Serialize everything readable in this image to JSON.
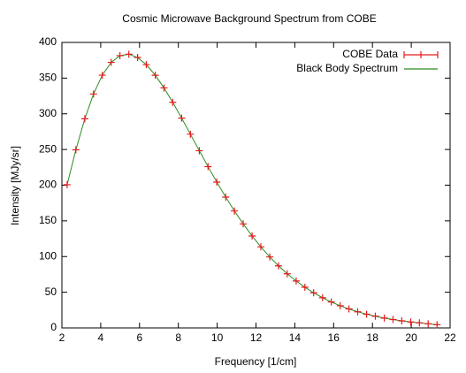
{
  "chart_data": {
    "type": "line",
    "title": "Cosmic Microwave Background Spectrum from COBE",
    "x_label": "Frequency [1/cm]",
    "y_label": "Intensity [MJy/sr]",
    "x": [
      2.27,
      2.72,
      3.18,
      3.63,
      4.08,
      4.54,
      4.99,
      5.45,
      5.9,
      6.35,
      6.81,
      7.26,
      7.71,
      8.17,
      8.62,
      9.08,
      9.53,
      9.98,
      10.44,
      10.89,
      11.34,
      11.8,
      12.25,
      12.71,
      13.16,
      13.61,
      14.07,
      14.52,
      14.97,
      15.43,
      15.88,
      16.34,
      16.79,
      17.24,
      17.7,
      18.15,
      18.61,
      19.06,
      19.51,
      19.97,
      20.42,
      20.87,
      21.33
    ],
    "series": [
      {
        "name": "COBE Data",
        "color": "#e41a1c",
        "style": "points",
        "values": [
          200.723,
          249.508,
          293.024,
          327.77,
          354.081,
          372.079,
          381.493,
          383.478,
          378.901,
          368.833,
          354.063,
          336.278,
          316.076,
          293.924,
          271.432,
          248.239,
          225.94,
          204.327,
          183.262,
          163.83,
          145.75,
          128.835,
          113.568,
          99.451,
          87.036,
          75.876,
          65.766,
          57.008,
          49.223,
          42.267,
          36.352,
          31.062,
          26.58,
          22.644,
          19.255,
          16.391,
          13.811,
          11.716,
          9.921,
          8.364,
          7.087,
          5.801,
          4.523
        ]
      },
      {
        "name": "Black Body Spectrum",
        "color": "#2e8b22",
        "style": "line",
        "values": [
          200.723,
          249.508,
          293.024,
          327.77,
          354.081,
          372.079,
          381.493,
          383.478,
          378.901,
          368.833,
          354.063,
          336.278,
          316.076,
          293.924,
          271.432,
          248.239,
          225.94,
          204.327,
          183.262,
          163.83,
          145.75,
          128.835,
          113.568,
          99.451,
          87.036,
          75.876,
          65.766,
          57.008,
          49.223,
          42.267,
          36.352,
          31.062,
          26.58,
          22.644,
          19.255,
          16.391,
          13.811,
          11.716,
          9.921,
          8.364,
          7.087,
          5.801,
          4.523
        ]
      }
    ],
    "xlim": [
      2,
      22
    ],
    "xticks": [
      2,
      4,
      6,
      8,
      10,
      12,
      14,
      16,
      18,
      20,
      22
    ],
    "ylim": [
      0,
      400
    ],
    "yticks": [
      0,
      50,
      100,
      150,
      200,
      250,
      300,
      350,
      400
    ],
    "grid": false,
    "legend": "top-right"
  }
}
